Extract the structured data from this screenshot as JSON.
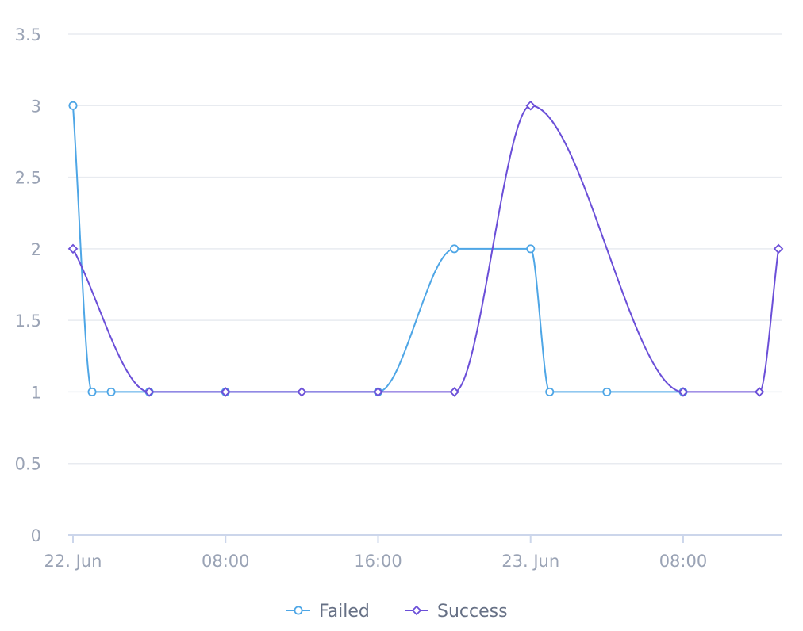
{
  "chart_data": {
    "type": "line",
    "x_axis": {
      "type": "datetime",
      "range": [
        "2023-06-22T00:00",
        "2023-06-23T14:00"
      ],
      "ticks": [
        {
          "x": "2023-06-22T00:00",
          "label": "22. Jun"
        },
        {
          "x": "2023-06-22T08:00",
          "label": "08:00"
        },
        {
          "x": "2023-06-22T16:00",
          "label": "16:00"
        },
        {
          "x": "2023-06-23T00:00",
          "label": "23. Jun"
        },
        {
          "x": "2023-06-23T08:00",
          "label": "08:00"
        }
      ]
    },
    "y_axis": {
      "ylim": [
        0,
        3.5
      ],
      "ticks": [
        {
          "value": 0,
          "label": "0"
        },
        {
          "value": 0.5,
          "label": "0.5"
        },
        {
          "value": 1,
          "label": "1"
        },
        {
          "value": 1.5,
          "label": "1.5"
        },
        {
          "value": 2,
          "label": "2"
        },
        {
          "value": 2.5,
          "label": "2.5"
        },
        {
          "value": 3,
          "label": "3"
        },
        {
          "value": 3.5,
          "label": "3.5"
        }
      ]
    },
    "grid": "horizontal",
    "legend_position": "bottom-center",
    "series": [
      {
        "name": "Failed",
        "color": "#4ea6e6",
        "marker": "circle",
        "points": [
          {
            "x": "2023-06-22T00:00",
            "y": 3
          },
          {
            "x": "2023-06-22T01:00",
            "y": 1
          },
          {
            "x": "2023-06-22T02:00",
            "y": 1
          },
          {
            "x": "2023-06-22T04:00",
            "y": 1
          },
          {
            "x": "2023-06-22T08:00",
            "y": 1
          },
          {
            "x": "2023-06-22T16:00",
            "y": 1
          },
          {
            "x": "2023-06-22T20:00",
            "y": 2
          },
          {
            "x": "2023-06-23T00:00",
            "y": 2
          },
          {
            "x": "2023-06-23T01:00",
            "y": 1
          },
          {
            "x": "2023-06-23T04:00",
            "y": 1
          },
          {
            "x": "2023-06-23T08:00",
            "y": 1
          }
        ]
      },
      {
        "name": "Success",
        "color": "#6b4fd8",
        "marker": "diamond",
        "points": [
          {
            "x": "2023-06-22T00:00",
            "y": 2
          },
          {
            "x": "2023-06-22T04:00",
            "y": 1
          },
          {
            "x": "2023-06-22T08:00",
            "y": 1
          },
          {
            "x": "2023-06-22T12:00",
            "y": 1
          },
          {
            "x": "2023-06-22T16:00",
            "y": 1
          },
          {
            "x": "2023-06-22T20:00",
            "y": 1
          },
          {
            "x": "2023-06-23T00:00",
            "y": 3
          },
          {
            "x": "2023-06-23T08:00",
            "y": 1
          },
          {
            "x": "2023-06-23T12:00",
            "y": 1
          },
          {
            "x": "2023-06-23T13:00",
            "y": 2
          }
        ]
      }
    ]
  },
  "colors": {
    "grid": "#e8ebf0",
    "axis": "#ccd6eb",
    "tick_text": "#9aa3b5",
    "legend_text": "#667085"
  }
}
